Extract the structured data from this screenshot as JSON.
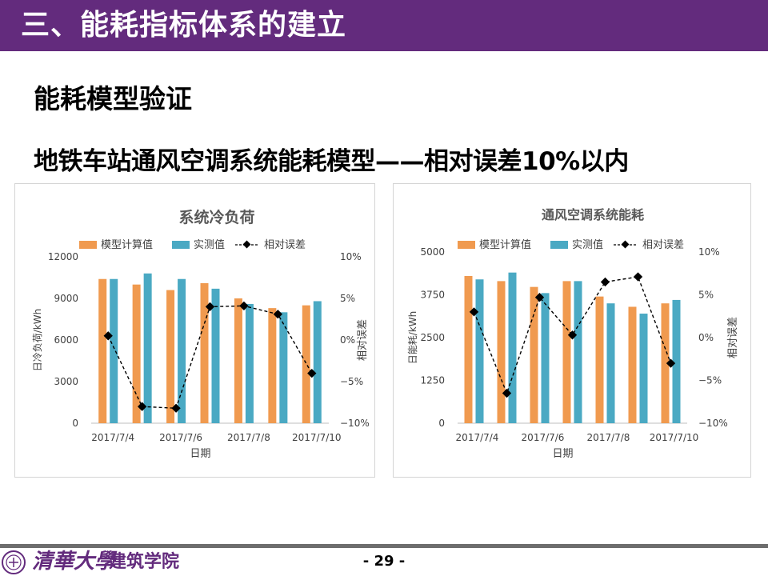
{
  "header": {
    "title": "三、能耗指标体系的建立"
  },
  "section": {
    "title": "能耗模型验证"
  },
  "subtitle": {
    "text": "地铁车站通风空调系统能耗模型——相对误差10%以内"
  },
  "colors": {
    "header": "#632b7d",
    "calc": "#f09a4f",
    "measured": "#4aa9c3",
    "error": "#000000"
  },
  "legend": {
    "calc": "模型计算值",
    "measured": "实测值",
    "error": "相对误差"
  },
  "chart_data": [
    {
      "type": "bar",
      "title": "系统冷负荷",
      "categories": [
        "2017/7/4",
        "2017/7/5",
        "2017/7/6",
        "2017/7/7",
        "2017/7/8",
        "2017/7/9",
        "2017/7/10"
      ],
      "x_tick_labels": [
        "2017/7/4",
        "2017/7/6",
        "2017/7/8",
        "2017/7/10"
      ],
      "xlabel": "日期",
      "ylabel": "日冷负荷/kWh",
      "y2label": "相对误差",
      "ylim": [
        0,
        12000
      ],
      "y_ticks": [
        "0",
        "3000",
        "6000",
        "9000",
        "12000"
      ],
      "y2lim": [
        -10,
        10
      ],
      "y2_ticks": [
        "−10%",
        "−5%",
        "0%",
        "5%",
        "10%"
      ],
      "series": [
        {
          "name": "模型计算值",
          "kind": "bar",
          "values": [
            10400,
            10000,
            9600,
            10100,
            9000,
            8300,
            8500
          ]
        },
        {
          "name": "实测值",
          "kind": "bar",
          "values": [
            10400,
            10800,
            10400,
            9700,
            8600,
            8000,
            8800
          ]
        },
        {
          "name": "相对误差",
          "kind": "line",
          "axis": "y2",
          "values": [
            0.5,
            -8.0,
            -8.2,
            4.0,
            4.1,
            3.1,
            -4.0
          ]
        }
      ]
    },
    {
      "type": "bar",
      "title": "通风空调系统能耗",
      "categories": [
        "2017/7/4",
        "2017/7/5",
        "2017/7/6",
        "2017/7/7",
        "2017/7/8",
        "2017/7/9",
        "2017/7/10"
      ],
      "x_tick_labels": [
        "2017/7/4",
        "2017/7/6",
        "2017/7/8",
        "2017/7/10"
      ],
      "xlabel": "日期",
      "ylabel": "日能耗/kWh",
      "y2label": "相对误差",
      "ylim": [
        0,
        5000
      ],
      "y_ticks": [
        "0",
        "1250",
        "2500",
        "3750",
        "5000"
      ],
      "y2lim": [
        -10,
        10
      ],
      "y2_ticks": [
        "−10%",
        "−5%",
        "0%",
        "5%",
        "10%"
      ],
      "series": [
        {
          "name": "模型计算值",
          "kind": "bar",
          "values": [
            4300,
            4150,
            3980,
            4150,
            3700,
            3400,
            3500
          ]
        },
        {
          "name": "实测值",
          "kind": "bar",
          "values": [
            4200,
            4400,
            3800,
            4150,
            3500,
            3200,
            3600
          ]
        },
        {
          "name": "相对误差",
          "kind": "line",
          "axis": "y2",
          "values": [
            3.0,
            -6.5,
            4.7,
            0.3,
            6.5,
            7.1,
            -3.0
          ]
        }
      ]
    }
  ],
  "footer": {
    "university": "清華大學",
    "school": "建筑学院",
    "page": "- 29 -"
  }
}
